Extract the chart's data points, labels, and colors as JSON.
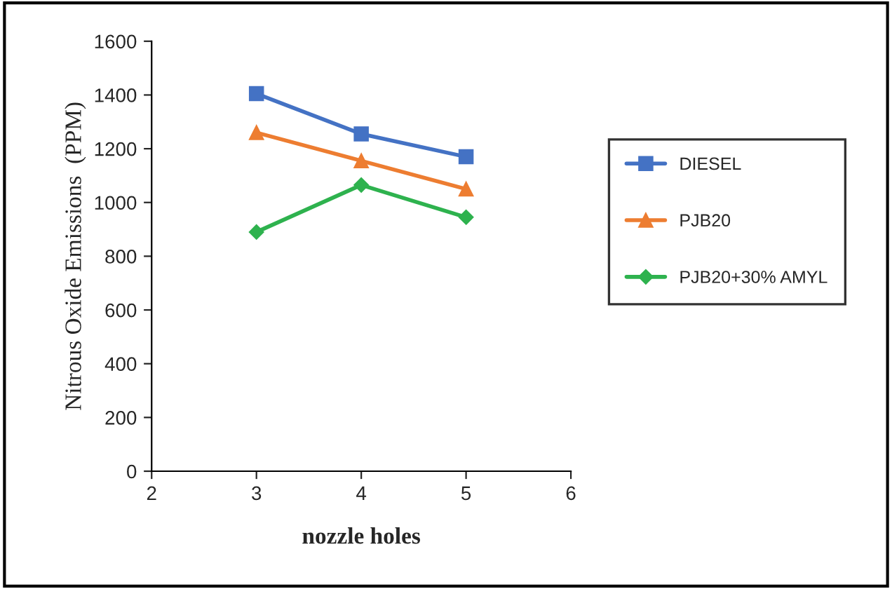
{
  "chart_data": {
    "type": "line",
    "xlabel": "nozzle holes",
    "ylabel": "Nitrous Oxide Emissions  (PPM)",
    "x": [
      3,
      4,
      5
    ],
    "series": [
      {
        "name": "DIESEL",
        "color": "#4472c4",
        "marker": "square",
        "values": [
          1405,
          1255,
          1170
        ]
      },
      {
        "name": "PJB20",
        "color": "#ed7d31",
        "marker": "triangle",
        "values": [
          1260,
          1155,
          1050
        ]
      },
      {
        "name": "PJB20+30% AMYL",
        "color": "#2eb24e",
        "marker": "diamond",
        "values": [
          890,
          1065,
          945
        ]
      }
    ],
    "xlim": [
      2,
      6
    ],
    "xticks": [
      2,
      3,
      4,
      5,
      6
    ],
    "ylim": [
      0,
      1600
    ],
    "yticks": [
      0,
      200,
      400,
      600,
      800,
      1000,
      1200,
      1400,
      1600
    ],
    "grid": false,
    "legend": "right",
    "line_style": "solid"
  }
}
